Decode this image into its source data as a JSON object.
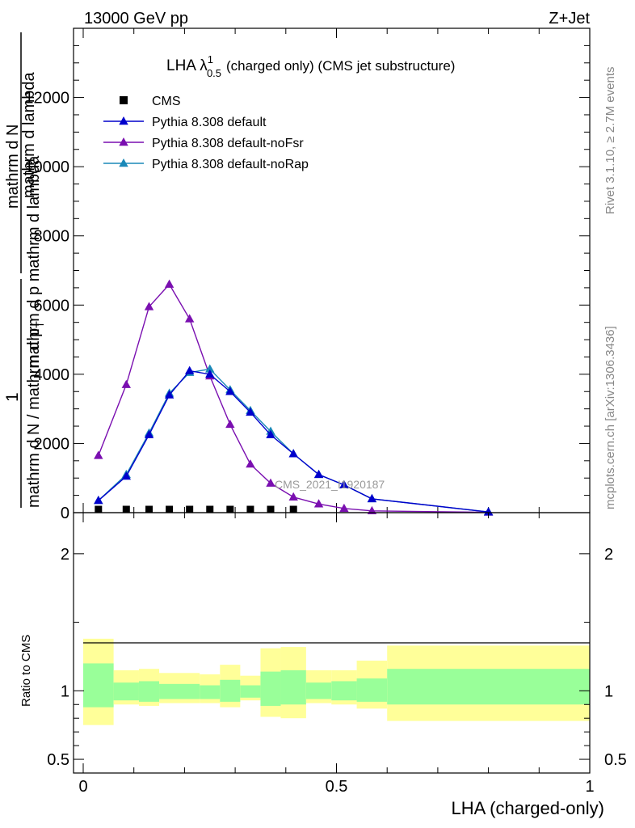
{
  "header": {
    "left": "13000 GeV pp",
    "right": "Z+Jet"
  },
  "side_labels": {
    "rivet": "Rivet 3.1.10, ≥ 2.7M events",
    "mcplots": "mcplots.cern.ch [arXiv:1306.3436]"
  },
  "watermark": "CMS_2021_I1920187",
  "chart_data": [
    {
      "type": "line",
      "title_main": "LHA λ",
      "title_sup": "1",
      "title_sub": "0.5",
      "title_rest": "(charged only) (CMS jet substructure)",
      "ylabel_numerator": "1",
      "ylabel_line1": "mathrm d N / mathrm d p",
      "ylabel_sub": "T",
      "ylabel_line2": "mathrm d N",
      "ylabel_line3": "mathrm d p",
      "ylabel_line4": "mathrm d lambda",
      "ylabel_overlay": "mathrm d p mathrm d lambda",
      "xlim": [
        0,
        1
      ],
      "ylim": [
        0,
        14000
      ],
      "yticks": [
        {
          "v": 0,
          "label": "0"
        },
        {
          "v": 2000,
          "label": "2000"
        },
        {
          "v": 4000,
          "label": "4000"
        },
        {
          "v": 6000,
          "label": "6000"
        },
        {
          "v": 8000,
          "label": "8000"
        },
        {
          "v": 10000,
          "label": "10000"
        },
        {
          "v": 12000,
          "label": "12000"
        }
      ],
      "legend_position": "top-left",
      "series": [
        {
          "name": "CMS",
          "color": "#000000",
          "marker": "square",
          "x": [
            0.03,
            0.085,
            0.13,
            0.17,
            0.21,
            0.25,
            0.29,
            0.33,
            0.37,
            0.415
          ],
          "y": [
            20,
            20,
            20,
            20,
            20,
            20,
            20,
            20,
            20,
            20
          ]
        },
        {
          "name": "Pythia 8.308 default",
          "color": "#0000cc",
          "marker": "triangle",
          "x": [
            0.03,
            0.085,
            0.13,
            0.17,
            0.21,
            0.25,
            0.29,
            0.33,
            0.37,
            0.415,
            0.465,
            0.515,
            0.57,
            0.8
          ],
          "y": [
            350,
            1050,
            2250,
            3400,
            4100,
            4000,
            3500,
            2900,
            2250,
            1700,
            1100,
            800,
            400,
            20
          ]
        },
        {
          "name": "Pythia 8.308 default-noFsr",
          "color": "#7a0fb0",
          "marker": "triangle",
          "x": [
            0.03,
            0.085,
            0.13,
            0.17,
            0.21,
            0.25,
            0.29,
            0.33,
            0.37,
            0.415,
            0.465,
            0.515,
            0.57,
            0.8
          ],
          "y": [
            1650,
            3700,
            5950,
            6600,
            5600,
            3950,
            2550,
            1400,
            850,
            450,
            250,
            120,
            50,
            10
          ]
        },
        {
          "name": "Pythia 8.308 default-noRap",
          "color": "#1a88b8",
          "marker": "triangle",
          "x": [
            0.03,
            0.085,
            0.13,
            0.17,
            0.21,
            0.25,
            0.29,
            0.33,
            0.37,
            0.415,
            0.465,
            0.515,
            0.57,
            0.8
          ],
          "y": [
            350,
            1100,
            2300,
            3450,
            4050,
            4150,
            3550,
            2950,
            2350,
            1700,
            1100,
            800,
            400,
            20
          ]
        }
      ]
    },
    {
      "type": "area",
      "ylabel": "Ratio to CMS",
      "xlabel": "LHA (charged-only)",
      "xlim": [
        0,
        1
      ],
      "ylim": [
        0.4,
        2.3
      ],
      "xticks": [
        {
          "v": 0,
          "label": "0"
        },
        {
          "v": 0.5,
          "label": "0.5"
        },
        {
          "v": 1,
          "label": "1"
        }
      ],
      "yticks": [
        {
          "v": 0.5,
          "label": "0.5"
        },
        {
          "v": 1,
          "label": "1"
        },
        {
          "v": 2,
          "label": "2"
        }
      ],
      "band_colors": {
        "outer": "#ffff99",
        "inner": "#99ff99",
        "line": "#000000"
      },
      "bins": [
        {
          "x0": 0.0,
          "x1": 0.06,
          "y0": 0.75,
          "y1": 1.38,
          "g0": 0.88,
          "g1": 1.2
        },
        {
          "x0": 0.06,
          "x1": 0.11,
          "y0": 0.9,
          "y1": 1.15,
          "g0": 0.93,
          "g1": 1.06
        },
        {
          "x0": 0.11,
          "x1": 0.15,
          "y0": 0.89,
          "y1": 1.16,
          "g0": 0.92,
          "g1": 1.07
        },
        {
          "x0": 0.15,
          "x1": 0.23,
          "y0": 0.91,
          "y1": 1.13,
          "g0": 0.94,
          "g1": 1.05
        },
        {
          "x0": 0.23,
          "x1": 0.27,
          "y0": 0.91,
          "y1": 1.12,
          "g0": 0.94,
          "g1": 1.04
        },
        {
          "x0": 0.27,
          "x1": 0.31,
          "y0": 0.88,
          "y1": 1.19,
          "g0": 0.92,
          "g1": 1.08
        },
        {
          "x0": 0.31,
          "x1": 0.35,
          "y0": 0.93,
          "y1": 1.11,
          "g0": 0.95,
          "g1": 1.04
        },
        {
          "x0": 0.35,
          "x1": 0.39,
          "y0": 0.81,
          "y1": 1.31,
          "g0": 0.89,
          "g1": 1.14
        },
        {
          "x0": 0.39,
          "x1": 0.44,
          "y0": 0.8,
          "y1": 1.32,
          "g0": 0.9,
          "g1": 1.15
        },
        {
          "x0": 0.44,
          "x1": 0.49,
          "y0": 0.91,
          "y1": 1.15,
          "g0": 0.94,
          "g1": 1.06
        },
        {
          "x0": 0.49,
          "x1": 0.54,
          "y0": 0.9,
          "y1": 1.15,
          "g0": 0.93,
          "g1": 1.07
        },
        {
          "x0": 0.54,
          "x1": 0.6,
          "y0": 0.87,
          "y1": 1.22,
          "g0": 0.92,
          "g1": 1.09
        },
        {
          "x0": 0.6,
          "x1": 1.0,
          "y0": 0.78,
          "y1": 1.33,
          "g0": 0.9,
          "g1": 1.16
        }
      ]
    }
  ]
}
